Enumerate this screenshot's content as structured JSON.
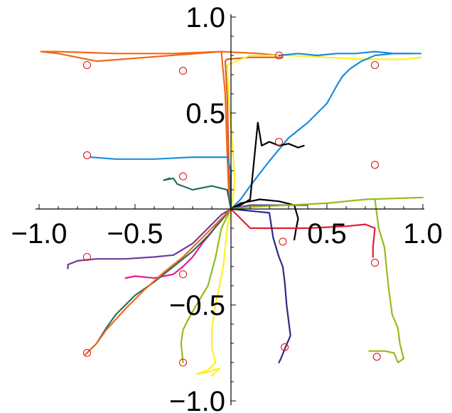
{
  "chart_data": {
    "type": "line",
    "title": "",
    "xlabel": "",
    "ylabel": "",
    "xlim": [
      -1.0,
      1.0
    ],
    "ylim": [
      -1.0,
      1.0
    ],
    "grid": false,
    "legend": "none",
    "x_ticks": [
      {
        "value": -1.0,
        "label": "−1.0"
      },
      {
        "value": -0.5,
        "label": "−0.5"
      },
      {
        "value": 0.5,
        "label": "0.5"
      },
      {
        "value": 1.0,
        "label": "1.0"
      }
    ],
    "y_ticks": [
      {
        "value": 1.0,
        "label": "1.0"
      },
      {
        "value": 0.5,
        "label": "0.5"
      },
      {
        "value": -0.5,
        "label": "−0.5"
      },
      {
        "value": -1.0,
        "label": "−1.0"
      }
    ],
    "targets": [
      {
        "x": -0.75,
        "y": 0.75
      },
      {
        "x": -0.25,
        "y": 0.72
      },
      {
        "x": 0.25,
        "y": 0.8
      },
      {
        "x": 0.75,
        "y": 0.75
      },
      {
        "x": -0.75,
        "y": 0.28
      },
      {
        "x": -0.25,
        "y": 0.17
      },
      {
        "x": 0.25,
        "y": 0.35
      },
      {
        "x": 0.75,
        "y": 0.23
      },
      {
        "x": -0.75,
        "y": -0.25
      },
      {
        "x": -0.25,
        "y": -0.34
      },
      {
        "x": 0.27,
        "y": -0.17
      },
      {
        "x": 0.75,
        "y": -0.28
      },
      {
        "x": -0.75,
        "y": -0.75
      },
      {
        "x": -0.25,
        "y": -0.8
      },
      {
        "x": 0.28,
        "y": -0.72
      },
      {
        "x": 0.76,
        "y": -0.77
      }
    ],
    "series": [
      {
        "color": "#f16a15",
        "points": [
          [
            0,
            0
          ],
          [
            -0.01,
            0.05
          ],
          [
            -0.02,
            0.3
          ],
          [
            -0.03,
            0.6
          ],
          [
            -0.05,
            0.82
          ],
          [
            -0.3,
            0.81
          ],
          [
            -0.6,
            0.81
          ],
          [
            -0.9,
            0.82
          ],
          [
            -0.99,
            0.82
          ],
          [
            -0.9,
            0.81
          ],
          [
            -0.8,
            0.79
          ],
          [
            -0.7,
            0.77
          ],
          [
            -0.05,
            0.82
          ],
          [
            0.15,
            0.81
          ],
          [
            0.25,
            0.8
          ]
        ]
      },
      {
        "color": "#e05a2a",
        "points": [
          [
            0,
            0
          ],
          [
            -0.01,
            0.2
          ],
          [
            -0.02,
            0.6
          ],
          [
            -0.03,
            0.77
          ],
          [
            -0.02,
            0.78
          ],
          [
            0.1,
            0.79
          ],
          [
            0.27,
            0.79
          ]
        ]
      },
      {
        "color": "#fff01e",
        "points": [
          [
            0,
            0
          ],
          [
            0.01,
            0.05
          ],
          [
            0.02,
            0.15
          ],
          [
            0.01,
            0.3
          ],
          [
            -0.01,
            0.55
          ],
          [
            -0.02,
            0.75
          ],
          [
            0.1,
            0.8
          ],
          [
            0.3,
            0.8
          ],
          [
            0.5,
            0.79
          ],
          [
            0.7,
            0.78
          ],
          [
            0.9,
            0.78
          ],
          [
            0.99,
            0.79
          ]
        ]
      },
      {
        "color": "#1b8ae0",
        "points": [
          [
            0,
            0
          ],
          [
            0.05,
            0.05
          ],
          [
            0.1,
            0.12
          ],
          [
            0.2,
            0.25
          ],
          [
            0.3,
            0.37
          ],
          [
            0.4,
            0.45
          ],
          [
            0.5,
            0.55
          ],
          [
            0.55,
            0.64
          ],
          [
            0.58,
            0.69
          ],
          [
            0.62,
            0.73
          ],
          [
            0.68,
            0.77
          ],
          [
            0.75,
            0.8
          ],
          [
            0.85,
            0.81
          ],
          [
            0.99,
            0.81
          ]
        ]
      },
      {
        "color": "#1b8ae0",
        "points": [
          [
            0.25,
            0.8
          ],
          [
            0.35,
            0.81
          ],
          [
            0.45,
            0.8
          ],
          [
            0.55,
            0.81
          ],
          [
            0.65,
            0.81
          ],
          [
            0.75,
            0.82
          ],
          [
            0.85,
            0.81
          ],
          [
            0.95,
            0.81
          ]
        ]
      },
      {
        "color": "#1a8fe2",
        "points": [
          [
            0,
            0
          ],
          [
            0,
            0.05
          ],
          [
            0,
            0.2
          ],
          [
            -0.02,
            0.27
          ],
          [
            -0.2,
            0.27
          ],
          [
            -0.4,
            0.26
          ],
          [
            -0.6,
            0.26
          ],
          [
            -0.73,
            0.27
          ]
        ]
      },
      {
        "color": "#2a6c66",
        "points": [
          [
            0,
            0
          ],
          [
            -0.01,
            0.05
          ],
          [
            -0.02,
            0.1
          ],
          [
            -0.1,
            0.12
          ],
          [
            -0.2,
            0.1
          ],
          [
            -0.28,
            0.13
          ],
          [
            -0.3,
            0.16
          ],
          [
            -0.35,
            0.15
          ],
          [
            -0.32,
            0.16
          ]
        ]
      },
      {
        "color": "#000000",
        "points": [
          [
            0,
            0
          ],
          [
            0.05,
            0.02
          ],
          [
            0.1,
            0.05
          ],
          [
            0.12,
            0.25
          ],
          [
            0.14,
            0.45
          ],
          [
            0.16,
            0.33
          ],
          [
            0.2,
            0.35
          ],
          [
            0.25,
            0.33
          ],
          [
            0.3,
            0.34
          ],
          [
            0.35,
            0.32
          ],
          [
            0.38,
            0.33
          ],
          [
            0.35,
            0.32
          ]
        ]
      },
      {
        "color": "#000000",
        "points": [
          [
            0,
            0
          ],
          [
            0.05,
            0.03
          ],
          [
            0.15,
            0.05
          ],
          [
            0.25,
            0.04
          ],
          [
            0.33,
            0.02
          ],
          [
            0.35,
            -0.05
          ],
          [
            0.34,
            -0.1
          ],
          [
            0.33,
            -0.16
          ]
        ]
      },
      {
        "color": "#6e3b9f",
        "points": [
          [
            0,
            0
          ],
          [
            0.1,
            0.02
          ],
          [
            0.2,
            0.02
          ],
          [
            0.3,
            0.02
          ],
          [
            0.4,
            0.02
          ]
        ]
      },
      {
        "color": "#6e3b9f",
        "points": [
          [
            0,
            0
          ],
          [
            -0.05,
            -0.03
          ],
          [
            -0.1,
            -0.08
          ],
          [
            -0.2,
            -0.18
          ],
          [
            -0.3,
            -0.24
          ],
          [
            -0.4,
            -0.25
          ],
          [
            -0.55,
            -0.26
          ],
          [
            -0.7,
            -0.26
          ],
          [
            -0.8,
            -0.27
          ],
          [
            -0.85,
            -0.29
          ],
          [
            -0.85,
            -0.31
          ]
        ]
      },
      {
        "color": "#93bd1a",
        "points": [
          [
            0,
            0
          ],
          [
            0.1,
            0.01
          ],
          [
            0.3,
            0.02
          ],
          [
            0.5,
            0.03
          ],
          [
            0.7,
            0.05
          ],
          [
            1.0,
            0.06
          ]
        ]
      },
      {
        "color": "#93bd1a",
        "points": [
          [
            0.75,
            0.05
          ],
          [
            0.77,
            -0.1
          ],
          [
            0.8,
            -0.2
          ],
          [
            0.82,
            -0.4
          ],
          [
            0.84,
            -0.55
          ],
          [
            0.87,
            -0.62
          ],
          [
            0.88,
            -0.7
          ],
          [
            0.9,
            -0.78
          ],
          [
            0.87,
            -0.8
          ],
          [
            0.85,
            -0.75
          ],
          [
            0.8,
            -0.74
          ],
          [
            0.72,
            -0.74
          ]
        ]
      },
      {
        "color": "#93bd1a",
        "points": [
          [
            0,
            0
          ],
          [
            -0.05,
            -0.1
          ],
          [
            -0.08,
            -0.25
          ],
          [
            -0.12,
            -0.4
          ],
          [
            -0.18,
            -0.5
          ],
          [
            -0.22,
            -0.57
          ],
          [
            -0.25,
            -0.63
          ],
          [
            -0.26,
            -0.7
          ],
          [
            -0.25,
            -0.8
          ]
        ]
      },
      {
        "color": "#fff01e",
        "points": [
          [
            0,
            0
          ],
          [
            -0.02,
            -0.1
          ],
          [
            -0.04,
            -0.3
          ],
          [
            -0.08,
            -0.5
          ],
          [
            -0.1,
            -0.62
          ],
          [
            -0.1,
            -0.72
          ],
          [
            -0.08,
            -0.8
          ],
          [
            -0.12,
            -0.84
          ],
          [
            -0.18,
            -0.86
          ],
          [
            -0.12,
            -0.85
          ],
          [
            -0.06,
            -0.83
          ],
          [
            -0.1,
            -0.87
          ]
        ]
      },
      {
        "color": "#e8193a",
        "points": [
          [
            0,
            0
          ],
          [
            0.1,
            -0.1
          ],
          [
            0.2,
            -0.1
          ],
          [
            0.4,
            -0.1
          ],
          [
            0.6,
            -0.09
          ],
          [
            0.7,
            -0.08
          ],
          [
            0.75,
            -0.1
          ],
          [
            0.74,
            -0.2
          ],
          [
            0.74,
            -0.25
          ]
        ]
      },
      {
        "color": "#2b2b87",
        "points": [
          [
            0,
            0
          ],
          [
            0.1,
            -0.01
          ],
          [
            0.2,
            -0.02
          ],
          [
            0.22,
            -0.15
          ],
          [
            0.25,
            -0.25
          ],
          [
            0.27,
            -0.3
          ],
          [
            0.28,
            -0.38
          ],
          [
            0.29,
            -0.5
          ],
          [
            0.3,
            -0.58
          ],
          [
            0.31,
            -0.66
          ],
          [
            0.28,
            -0.73
          ],
          [
            0.26,
            -0.78
          ],
          [
            0.25,
            -0.8
          ]
        ]
      },
      {
        "color": "#e81a8f",
        "points": [
          [
            0,
            0
          ],
          [
            -0.05,
            -0.05
          ],
          [
            -0.1,
            -0.12
          ],
          [
            -0.15,
            -0.18
          ],
          [
            -0.2,
            -0.25
          ],
          [
            -0.25,
            -0.3
          ],
          [
            -0.3,
            -0.34
          ],
          [
            -0.4,
            -0.36
          ],
          [
            -0.5,
            -0.35
          ],
          [
            -0.55,
            -0.36
          ]
        ]
      },
      {
        "color": "#2a6c66",
        "points": [
          [
            0,
            0
          ],
          [
            -0.05,
            -0.06
          ],
          [
            -0.12,
            -0.14
          ],
          [
            -0.2,
            -0.22
          ],
          [
            -0.3,
            -0.3
          ],
          [
            -0.4,
            -0.38
          ],
          [
            -0.5,
            -0.45
          ],
          [
            -0.6,
            -0.55
          ],
          [
            -0.65,
            -0.62
          ],
          [
            -0.7,
            -0.7
          ],
          [
            -0.75,
            -0.75
          ]
        ]
      },
      {
        "color": "#f16a15",
        "points": [
          [
            0,
            0
          ],
          [
            -0.05,
            -0.05
          ],
          [
            -0.15,
            -0.15
          ],
          [
            -0.25,
            -0.25
          ],
          [
            -0.35,
            -0.33
          ],
          [
            -0.45,
            -0.42
          ],
          [
            -0.55,
            -0.52
          ],
          [
            -0.65,
            -0.63
          ],
          [
            -0.7,
            -0.7
          ],
          [
            -0.76,
            -0.76
          ]
        ]
      }
    ]
  }
}
